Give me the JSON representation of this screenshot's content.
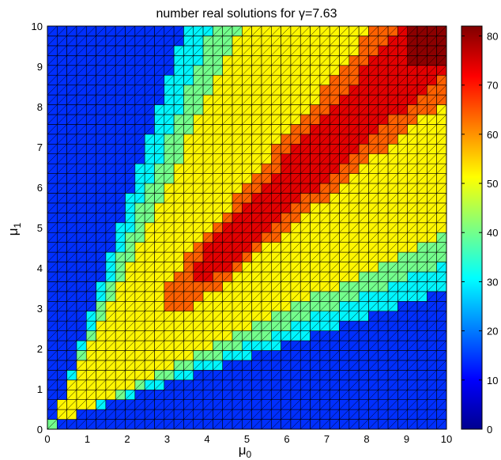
{
  "chart_data": {
    "type": "heatmap",
    "title": "number real solutions for γ=7.63",
    "xlabel": "μ",
    "xlabel_sub": "0",
    "ylabel": "μ",
    "ylabel_sub": "1",
    "xlim": [
      0,
      10
    ],
    "ylim": [
      0,
      10
    ],
    "xticks": [
      "0",
      "1",
      "2",
      "3",
      "4",
      "5",
      "6",
      "7",
      "8",
      "9",
      "10"
    ],
    "yticks": [
      "0",
      "1",
      "2",
      "3",
      "4",
      "5",
      "6",
      "7",
      "8",
      "9",
      "10"
    ],
    "grid_cells": 41,
    "cell_step": 0.25,
    "colormap": "jet",
    "clim": [
      0,
      82
    ],
    "colorbar_ticks": [
      "0",
      "10",
      "20",
      "30",
      "40",
      "50",
      "60",
      "70",
      "80"
    ],
    "value_model": {
      "description_of_visible_structure": "symmetric band along the diagonal; dark blue far from diagonal, cyan/green transition, yellow band, red core in upper-right along diagonal",
      "background": 14,
      "outer_band_cyan": 30,
      "outer_band_green": 40,
      "yellow_band": 52,
      "orange_band": 64,
      "red_core": 74,
      "peak_corner": 81
    }
  }
}
